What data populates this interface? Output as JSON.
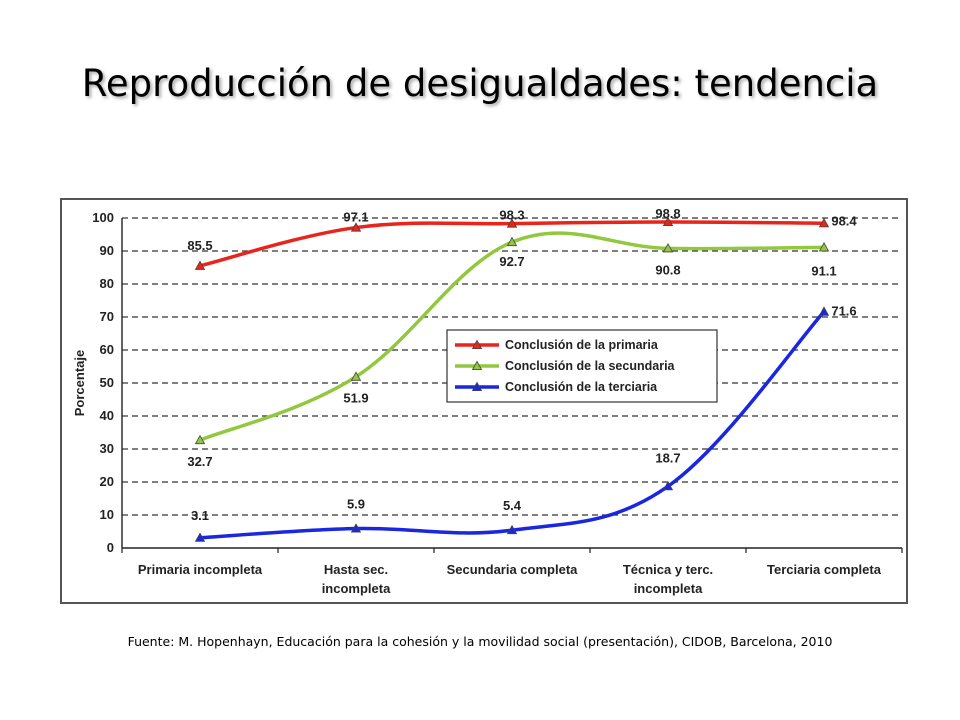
{
  "title": "Reproducción de desigualdades: tendencia",
  "source": "Fuente: M. Hopenhayn, Educación para la cohesión y la movilidad social (presentación), CIDOB, Barcelona, 2010",
  "chart_data": {
    "type": "line",
    "title": "",
    "xlabel": "",
    "ylabel": "Porcentaje",
    "ylim": [
      0,
      100
    ],
    "yticks": [
      0,
      10,
      20,
      30,
      40,
      50,
      60,
      70,
      80,
      90,
      100
    ],
    "grid": "horizontal dashed",
    "legend": "center-right",
    "categories": [
      [
        "Primaria incompleta"
      ],
      [
        "Hasta sec.",
        "incompleta"
      ],
      [
        "Secundaria completa"
      ],
      [
        "Técnica y terc.",
        "incompleta"
      ],
      [
        "Terciaria completa"
      ]
    ],
    "series": [
      {
        "name": "Conclusión de la primaria",
        "color": "#e8241b",
        "values": [
          85.5,
          97.1,
          98.3,
          98.8,
          98.4
        ]
      },
      {
        "name": "Conclusión de la secundaria",
        "color": "#92c83e",
        "values": [
          32.7,
          51.9,
          92.7,
          90.8,
          91.1
        ]
      },
      {
        "name": "Conclusión de la terciaria",
        "color": "#1a27e0",
        "values": [
          3.1,
          5.9,
          5.4,
          18.7,
          71.6
        ]
      }
    ],
    "data_labels": [
      [
        "85.5",
        "97.1",
        "98.3",
        "98.8",
        "98.4"
      ],
      [
        "32.7",
        "51.9",
        "92.7",
        "90.8",
        "91.1"
      ],
      [
        "3.1",
        "5.9",
        "5.4",
        "18.7",
        "71.6"
      ]
    ]
  }
}
